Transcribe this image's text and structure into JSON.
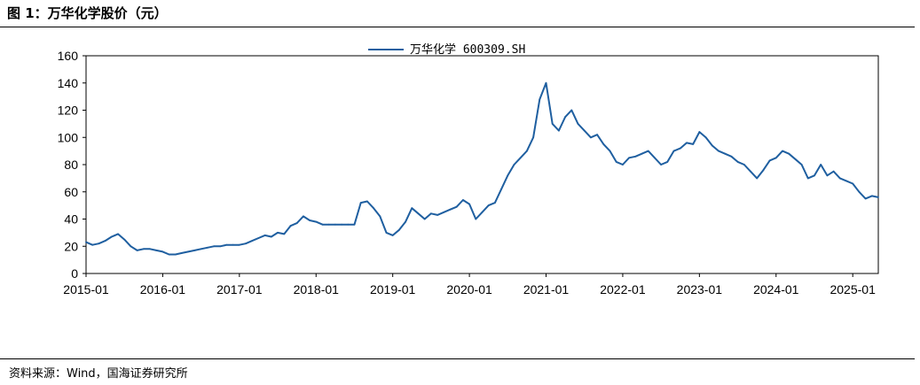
{
  "figure": {
    "title": "图 1：万华化学股价（元）",
    "source": "资料来源：Wind，国海证券研究所"
  },
  "chart_data": {
    "type": "line",
    "title": "",
    "xlabel": "",
    "ylabel": "",
    "ylim": [
      0,
      160
    ],
    "yticks": [
      "0",
      "20",
      "40",
      "60",
      "80",
      "100",
      "120",
      "140",
      "160"
    ],
    "xticks": [
      "2015-01",
      "2016-01",
      "2017-01",
      "2018-01",
      "2019-01",
      "2020-01",
      "2021-01",
      "2022-01",
      "2023-01",
      "2024-01",
      "2025-01"
    ],
    "xlim": [
      "2015-01",
      "2025-05"
    ],
    "grid": false,
    "legend": "top-center",
    "series": [
      {
        "name": "万华化学 600309.SH",
        "color": "#1f5fa0",
        "x": [
          "2015-01",
          "2015-02",
          "2015-03",
          "2015-04",
          "2015-05",
          "2015-06",
          "2015-07",
          "2015-08",
          "2015-09",
          "2015-10",
          "2015-11",
          "2015-12",
          "2016-01",
          "2016-02",
          "2016-03",
          "2016-04",
          "2016-05",
          "2016-06",
          "2016-07",
          "2016-08",
          "2016-09",
          "2016-10",
          "2016-11",
          "2016-12",
          "2017-01",
          "2017-02",
          "2017-03",
          "2017-04",
          "2017-05",
          "2017-06",
          "2017-07",
          "2017-08",
          "2017-09",
          "2017-10",
          "2017-11",
          "2017-12",
          "2018-01",
          "2018-02",
          "2018-03",
          "2018-04",
          "2018-05",
          "2018-06",
          "2018-07",
          "2018-08",
          "2018-09",
          "2018-10",
          "2018-11",
          "2018-12",
          "2019-01",
          "2019-02",
          "2019-03",
          "2019-04",
          "2019-05",
          "2019-06",
          "2019-07",
          "2019-08",
          "2019-09",
          "2019-10",
          "2019-11",
          "2019-12",
          "2020-01",
          "2020-02",
          "2020-03",
          "2020-04",
          "2020-05",
          "2020-06",
          "2020-07",
          "2020-08",
          "2020-09",
          "2020-10",
          "2020-11",
          "2020-12",
          "2021-01",
          "2021-02",
          "2021-03",
          "2021-04",
          "2021-05",
          "2021-06",
          "2021-07",
          "2021-08",
          "2021-09",
          "2021-10",
          "2021-11",
          "2021-12",
          "2022-01",
          "2022-02",
          "2022-03",
          "2022-04",
          "2022-05",
          "2022-06",
          "2022-07",
          "2022-08",
          "2022-09",
          "2022-10",
          "2022-11",
          "2022-12",
          "2023-01",
          "2023-02",
          "2023-03",
          "2023-04",
          "2023-05",
          "2023-06",
          "2023-07",
          "2023-08",
          "2023-09",
          "2023-10",
          "2023-11",
          "2023-12",
          "2024-01",
          "2024-02",
          "2024-03",
          "2024-04",
          "2024-05",
          "2024-06",
          "2024-07",
          "2024-08",
          "2024-09",
          "2024-10",
          "2024-11",
          "2024-12",
          "2025-01",
          "2025-02",
          "2025-03",
          "2025-04",
          "2025-05"
        ],
        "values": [
          23,
          21,
          22,
          24,
          27,
          29,
          25,
          20,
          17,
          18,
          18,
          17,
          16,
          14,
          14,
          15,
          16,
          17,
          18,
          19,
          20,
          20,
          21,
          21,
          21,
          22,
          24,
          26,
          28,
          27,
          30,
          29,
          35,
          37,
          42,
          39,
          38,
          36,
          36,
          36,
          36,
          36,
          36,
          52,
          53,
          48,
          42,
          30,
          28,
          32,
          38,
          48,
          44,
          40,
          44,
          43,
          45,
          47,
          49,
          54,
          51,
          40,
          45,
          50,
          52,
          62,
          72,
          80,
          85,
          90,
          100,
          128,
          140,
          110,
          105,
          115,
          120,
          110,
          105,
          100,
          102,
          95,
          90,
          82,
          80,
          85,
          86,
          88,
          90,
          85,
          80,
          82,
          90,
          92,
          96,
          95,
          104,
          100,
          94,
          90,
          88,
          86,
          82,
          80,
          75,
          70,
          76,
          83,
          85,
          90,
          88,
          84,
          80,
          70,
          72,
          80,
          72,
          75,
          70,
          68,
          66,
          60,
          55,
          57,
          56
        ]
      }
    ]
  }
}
